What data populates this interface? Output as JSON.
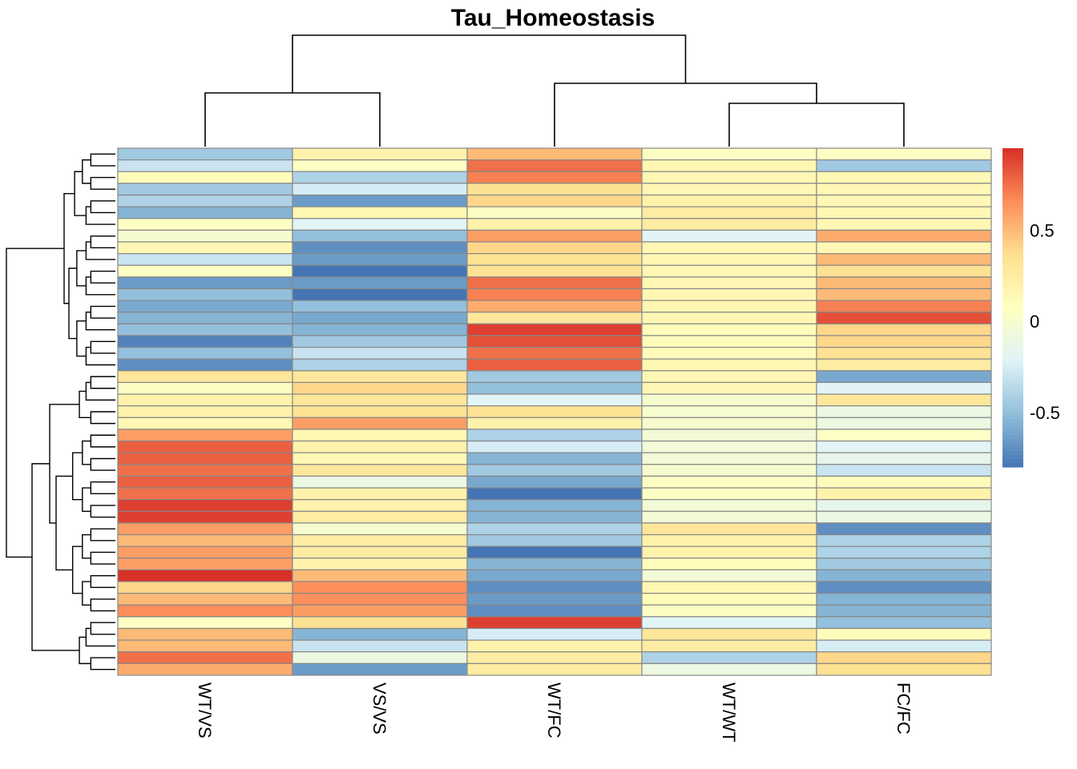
{
  "chart_data": {
    "type": "heatmap",
    "title": "Tau_Homeostasis",
    "columns": [
      "WT/VS",
      "VS/VS",
      "WT/FC",
      "WT/WT",
      "FC/FC"
    ],
    "values": [
      [
        -0.45,
        0.2,
        0.5,
        0.05,
        0.05
      ],
      [
        -0.3,
        0.05,
        0.75,
        0.15,
        -0.45
      ],
      [
        0.1,
        -0.4,
        0.7,
        0.15,
        0.15
      ],
      [
        -0.45,
        -0.25,
        0.35,
        0.15,
        0.15
      ],
      [
        -0.4,
        -0.65,
        0.4,
        0.2,
        0.15
      ],
      [
        -0.55,
        0.15,
        0.05,
        0.25,
        0.15
      ],
      [
        0.05,
        -0.2,
        0.2,
        0.25,
        0.15
      ],
      [
        0.0,
        -0.5,
        0.6,
        -0.2,
        0.55
      ],
      [
        0.15,
        -0.7,
        0.4,
        0.15,
        0.15
      ],
      [
        -0.3,
        -0.65,
        0.35,
        0.15,
        0.5
      ],
      [
        0.05,
        -0.8,
        0.35,
        0.15,
        0.35
      ],
      [
        -0.65,
        -0.65,
        0.75,
        0.15,
        0.5
      ],
      [
        -0.5,
        -0.8,
        0.7,
        0.15,
        0.5
      ],
      [
        -0.6,
        -0.5,
        0.55,
        0.15,
        0.7
      ],
      [
        -0.55,
        -0.6,
        0.3,
        0.15,
        0.85
      ],
      [
        -0.5,
        -0.55,
        0.9,
        0.1,
        0.4
      ],
      [
        -0.75,
        -0.45,
        0.85,
        0.1,
        0.4
      ],
      [
        -0.5,
        -0.3,
        0.75,
        0.1,
        0.35
      ],
      [
        -0.7,
        -0.4,
        0.8,
        0.15,
        0.25
      ],
      [
        0.3,
        0.3,
        -0.45,
        0.15,
        -0.6
      ],
      [
        0.05,
        0.4,
        -0.5,
        0.15,
        -0.2
      ],
      [
        0.2,
        0.3,
        -0.2,
        0.0,
        0.3
      ],
      [
        0.2,
        0.35,
        0.35,
        0.0,
        -0.1
      ],
      [
        0.15,
        0.6,
        0.2,
        0.0,
        -0.1
      ],
      [
        0.6,
        0.15,
        -0.4,
        -0.05,
        0.05
      ],
      [
        0.8,
        0.2,
        -0.25,
        -0.05,
        -0.2
      ],
      [
        0.8,
        0.15,
        -0.55,
        -0.05,
        -0.15
      ],
      [
        0.75,
        0.3,
        -0.45,
        0.0,
        -0.3
      ],
      [
        0.8,
        -0.1,
        -0.6,
        0.05,
        0.1
      ],
      [
        0.75,
        0.2,
        -0.8,
        0.05,
        0.2
      ],
      [
        0.9,
        0.2,
        -0.55,
        -0.05,
        -0.15
      ],
      [
        0.9,
        0.25,
        -0.55,
        -0.05,
        -0.1
      ],
      [
        0.6,
        0.0,
        -0.4,
        0.3,
        -0.7
      ],
      [
        0.5,
        0.25,
        -0.45,
        0.2,
        -0.4
      ],
      [
        0.6,
        0.25,
        -0.8,
        0.2,
        -0.4
      ],
      [
        0.6,
        0.2,
        -0.55,
        0.1,
        -0.45
      ],
      [
        0.95,
        0.5,
        -0.6,
        -0.05,
        -0.55
      ],
      [
        0.4,
        0.65,
        -0.7,
        0.15,
        -0.7
      ],
      [
        0.5,
        0.65,
        -0.65,
        0.1,
        -0.55
      ],
      [
        0.65,
        0.6,
        -0.7,
        0.05,
        -0.55
      ],
      [
        0.05,
        0.35,
        0.9,
        -0.2,
        -0.5
      ],
      [
        0.5,
        -0.55,
        -0.25,
        0.3,
        0.1
      ],
      [
        0.5,
        -0.3,
        0.2,
        0.25,
        -0.25
      ],
      [
        0.75,
        -0.1,
        0.25,
        -0.4,
        0.4
      ],
      [
        0.55,
        -0.65,
        0.25,
        -0.1,
        0.35
      ]
    ],
    "legend": {
      "min": -0.8,
      "max": 0.95,
      "ticks": [
        0.5,
        0,
        -0.5
      ],
      "tick_labels": [
        "0.5",
        "0",
        "-0.5"
      ],
      "colors": [
        "#4575b4",
        "#91bfdb",
        "#e0f3f8",
        "#ffffbf",
        "#fee090",
        "#fc8d59",
        "#d73027"
      ]
    },
    "border_color": "#888888",
    "column_dendrogram": true,
    "row_dendrogram": true,
    "column_tree": "((WT/VS,VS/VS),(WT/FC,(WT/WT,FC/FC)))"
  }
}
